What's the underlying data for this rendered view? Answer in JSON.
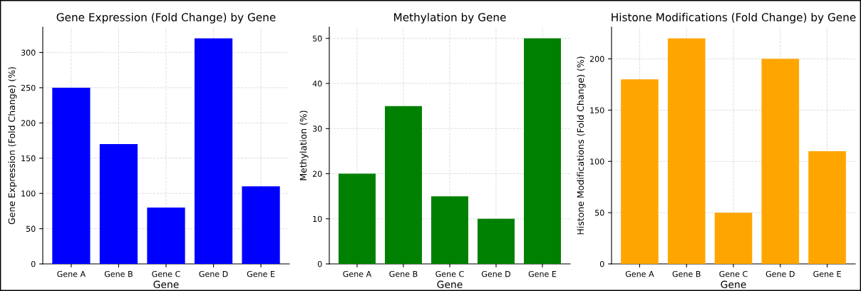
{
  "chart_data": [
    {
      "type": "bar",
      "title": "Gene Expression (Fold Change) by Gene",
      "xlabel": "Gene",
      "ylabel": "Gene Expression (Fold Change) (%)",
      "categories": [
        "Gene A",
        "Gene B",
        "Gene C",
        "Gene D",
        "Gene E"
      ],
      "values": [
        250,
        170,
        80,
        320,
        110
      ],
      "color": "#0000ff",
      "ylim": [
        0,
        336
      ],
      "yticks": [
        0,
        50,
        100,
        150,
        200,
        250,
        300
      ],
      "grid": true
    },
    {
      "type": "bar",
      "title": "Methylation by Gene",
      "xlabel": "Gene",
      "ylabel": "Methylation (%)",
      "categories": [
        "Gene A",
        "Gene B",
        "Gene C",
        "Gene D",
        "Gene E"
      ],
      "values": [
        20,
        35,
        15,
        10,
        50
      ],
      "color": "#008000",
      "ylim": [
        0,
        52.5
      ],
      "yticks": [
        0,
        10,
        20,
        30,
        40,
        50
      ],
      "grid": true
    },
    {
      "type": "bar",
      "title": "Histone Modifications (Fold Change) by Gene",
      "xlabel": "Gene",
      "ylabel": "Histone Modifications (Fold Change) (%)",
      "categories": [
        "Gene A",
        "Gene B",
        "Gene C",
        "Gene D",
        "Gene E"
      ],
      "values": [
        180,
        220,
        50,
        200,
        110
      ],
      "color": "#ffa500",
      "ylim": [
        0,
        231
      ],
      "yticks": [
        0,
        50,
        100,
        150,
        200
      ],
      "grid": true
    }
  ]
}
